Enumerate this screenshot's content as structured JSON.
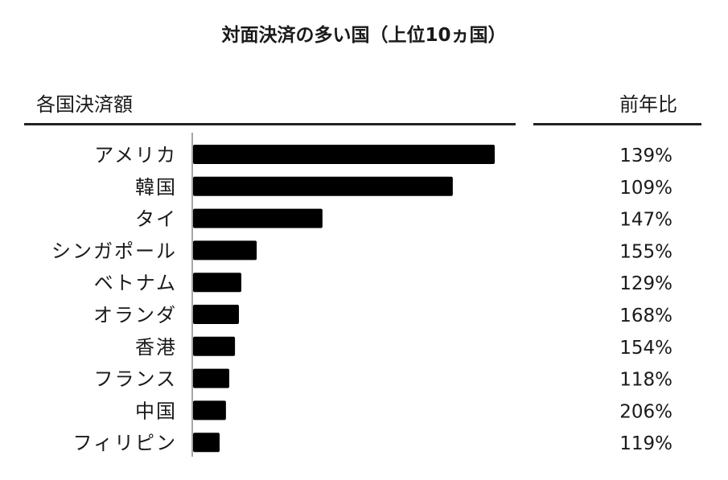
{
  "chart_data": {
    "type": "bar",
    "orientation": "horizontal",
    "title": "対面決済の多い国（上位10ヵ国）",
    "left_header": "各国決済額",
    "right_header": "前年比",
    "categories": [
      "アメリカ",
      "韓国",
      "タイ",
      "シンガポール",
      "ベトナム",
      "オランダ",
      "香港",
      "フランス",
      "中国",
      "フィリピン"
    ],
    "values_relative": [
      100,
      86.1,
      42.9,
      21.1,
      16.0,
      15.2,
      13.9,
      12.0,
      10.9,
      8.8
    ],
    "yoy_labels": [
      "139%",
      "109%",
      "147%",
      "155%",
      "129%",
      "168%",
      "154%",
      "118%",
      "206%",
      "119%"
    ],
    "bar_color": "#000000",
    "grid": false
  }
}
